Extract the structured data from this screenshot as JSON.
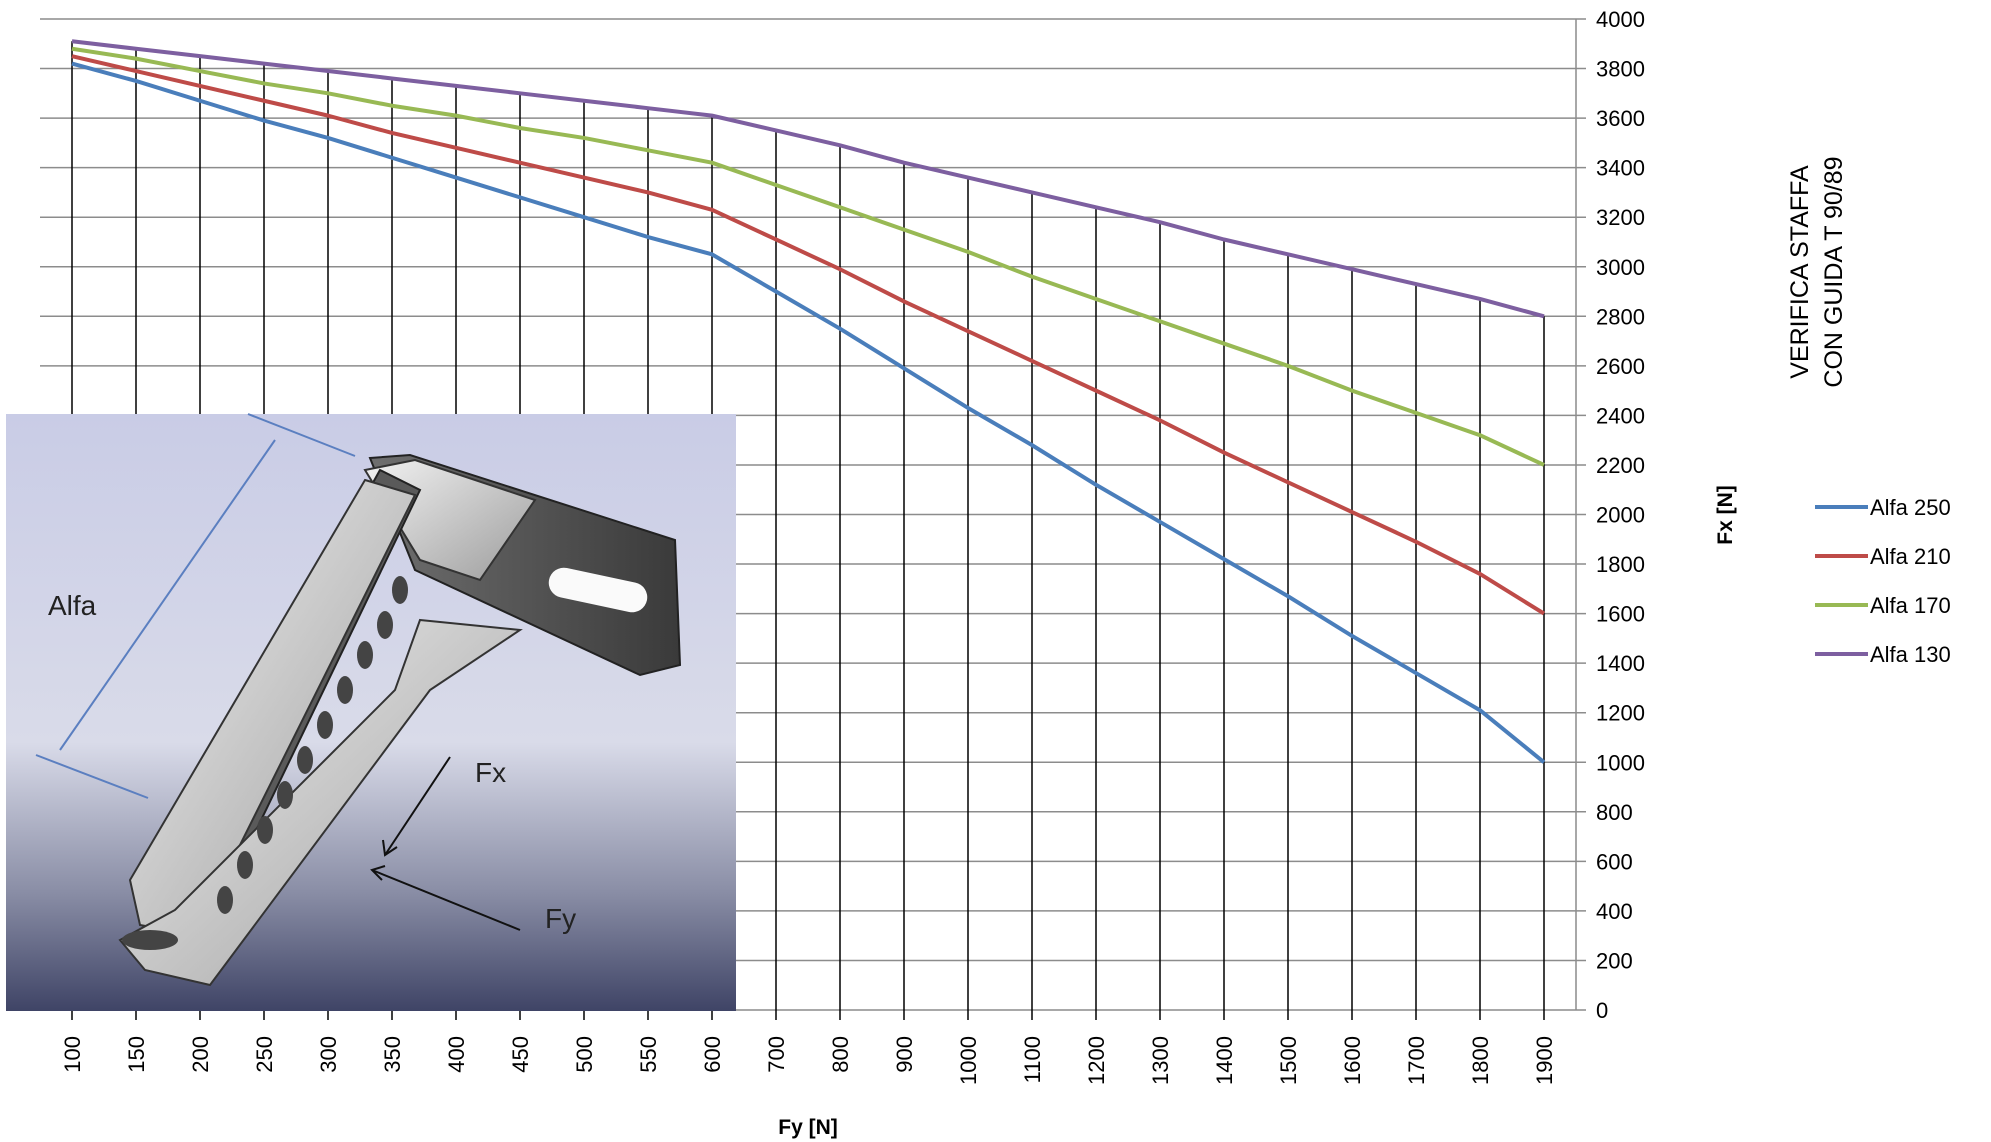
{
  "chart_data": {
    "type": "line",
    "title_lines": [
      "VERIFICA STAFFA",
      "CON GUIDA T 90/89"
    ],
    "xlabel": "Fy [N]",
    "ylabel": "Fx [N]",
    "categories": [
      "100",
      "150",
      "200",
      "250",
      "300",
      "350",
      "400",
      "450",
      "500",
      "550",
      "600",
      "700",
      "800",
      "900",
      "1000",
      "1100",
      "1200",
      "1300",
      "1400",
      "1500",
      "1600",
      "1700",
      "1800",
      "1900"
    ],
    "ylim": [
      0,
      4000
    ],
    "yticks": [
      "0",
      "200",
      "400",
      "600",
      "800",
      "1000",
      "1200",
      "1400",
      "1600",
      "1800",
      "2000",
      "2200",
      "2400",
      "2600",
      "2800",
      "3000",
      "3200",
      "3400",
      "3600",
      "3800",
      "4000"
    ],
    "grid": true,
    "legend_position": "right",
    "series": [
      {
        "name": "Alfa 250",
        "color": "#4a7ebb",
        "values": [
          3820,
          3750,
          3670,
          3590,
          3520,
          3440,
          3360,
          3280,
          3200,
          3120,
          3050,
          2900,
          2750,
          2590,
          2430,
          2280,
          2120,
          1970,
          1820,
          1670,
          1510,
          1360,
          1210,
          1000
        ]
      },
      {
        "name": "Alfa 210",
        "color": "#be4b48",
        "values": [
          3850,
          3790,
          3730,
          3670,
          3610,
          3540,
          3480,
          3420,
          3360,
          3300,
          3230,
          3110,
          2990,
          2860,
          2740,
          2620,
          2500,
          2380,
          2250,
          2130,
          2010,
          1890,
          1760,
          1600
        ]
      },
      {
        "name": "Alfa 170",
        "color": "#98b954",
        "values": [
          3880,
          3840,
          3790,
          3740,
          3700,
          3650,
          3610,
          3560,
          3520,
          3470,
          3420,
          3330,
          3240,
          3150,
          3060,
          2960,
          2870,
          2780,
          2690,
          2600,
          2500,
          2410,
          2320,
          2200
        ]
      },
      {
        "name": "Alfa 130",
        "color": "#7d5fa0",
        "values": [
          3910,
          3880,
          3850,
          3820,
          3790,
          3760,
          3730,
          3700,
          3670,
          3640,
          3610,
          3550,
          3490,
          3420,
          3360,
          3300,
          3240,
          3180,
          3110,
          3050,
          2990,
          2930,
          2870,
          2800
        ]
      }
    ]
  },
  "inset_image": {
    "labels": {
      "alfa": "Alfa",
      "fx": "Fx",
      "fy": "Fy"
    }
  }
}
